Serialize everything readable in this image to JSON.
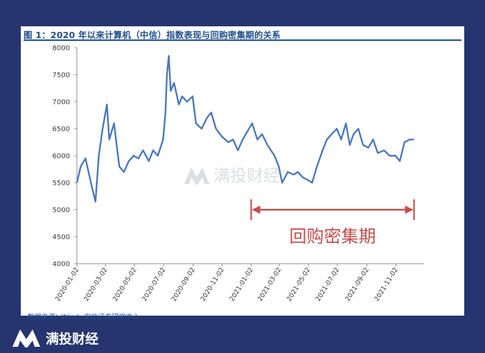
{
  "page": {
    "title": "图 1：2020 年以来计算机（中信）指数表现与回购密集期的关系",
    "source": "数据来源：Wind, 安信证券研究中心",
    "watermark": "满投财经",
    "brand": "满投财经"
  },
  "colors": {
    "background": "#26356f",
    "line": "#4a78b8",
    "annotation": "#c0504d",
    "title": "#1f4e8c"
  },
  "chart_data": {
    "type": "line",
    "title": "",
    "xlabel": "",
    "ylabel": "",
    "ylim": [
      4000,
      8000
    ],
    "yticks": [
      4000,
      4500,
      5000,
      5500,
      6000,
      6500,
      7000,
      7500,
      8000
    ],
    "xticks": [
      "2020-01-02",
      "2020-03-02",
      "2020-05-02",
      "2020-07-02",
      "2020-09-02",
      "2020-11-02",
      "2021-01-02",
      "2021-03-02",
      "2021-05-02",
      "2021-07-02",
      "2021-09-02",
      "2021-11-02"
    ],
    "grid": false,
    "series": [
      {
        "name": "",
        "points": [
          [
            "2020-01-02",
            5500
          ],
          [
            "2020-01-10",
            5800
          ],
          [
            "2020-01-20",
            5950
          ],
          [
            "2020-02-03",
            5400
          ],
          [
            "2020-02-10",
            5150
          ],
          [
            "2020-02-17",
            6000
          ],
          [
            "2020-02-25",
            6500
          ],
          [
            "2020-03-05",
            6950
          ],
          [
            "2020-03-10",
            6300
          ],
          [
            "2020-03-20",
            6600
          ],
          [
            "2020-03-31",
            5800
          ],
          [
            "2020-04-10",
            5700
          ],
          [
            "2020-04-20",
            5900
          ],
          [
            "2020-04-30",
            6000
          ],
          [
            "2020-05-10",
            5950
          ],
          [
            "2020-05-20",
            6100
          ],
          [
            "2020-06-01",
            5900
          ],
          [
            "2020-06-10",
            6100
          ],
          [
            "2020-06-20",
            6000
          ],
          [
            "2020-07-01",
            6300
          ],
          [
            "2020-07-06",
            6800
          ],
          [
            "2020-07-09",
            7500
          ],
          [
            "2020-07-13",
            7850
          ],
          [
            "2020-07-17",
            7200
          ],
          [
            "2020-07-24",
            7350
          ],
          [
            "2020-08-03",
            6950
          ],
          [
            "2020-08-10",
            7100
          ],
          [
            "2020-08-20",
            7000
          ],
          [
            "2020-09-01",
            7100
          ],
          [
            "2020-09-08",
            6600
          ],
          [
            "2020-09-20",
            6500
          ],
          [
            "2020-10-01",
            6700
          ],
          [
            "2020-10-10",
            6800
          ],
          [
            "2020-10-20",
            6500
          ],
          [
            "2020-11-02",
            6350
          ],
          [
            "2020-11-15",
            6250
          ],
          [
            "2020-11-25",
            6300
          ],
          [
            "2020-12-05",
            6100
          ],
          [
            "2020-12-15",
            6300
          ],
          [
            "2021-01-04",
            6600
          ],
          [
            "2021-01-15",
            6300
          ],
          [
            "2021-01-25",
            6400
          ],
          [
            "2021-02-05",
            6200
          ],
          [
            "2021-02-20",
            6000
          ],
          [
            "2021-03-01",
            5800
          ],
          [
            "2021-03-08",
            5500
          ],
          [
            "2021-03-20",
            5700
          ],
          [
            "2021-04-01",
            5650
          ],
          [
            "2021-04-10",
            5700
          ],
          [
            "2021-04-20",
            5600
          ],
          [
            "2021-05-01",
            5550
          ],
          [
            "2021-05-10",
            5500
          ],
          [
            "2021-05-20",
            5800
          ],
          [
            "2021-06-01",
            6100
          ],
          [
            "2021-06-10",
            6300
          ],
          [
            "2021-06-20",
            6400
          ],
          [
            "2021-07-01",
            6500
          ],
          [
            "2021-07-10",
            6300
          ],
          [
            "2021-07-20",
            6600
          ],
          [
            "2021-07-28",
            6200
          ],
          [
            "2021-08-05",
            6400
          ],
          [
            "2021-08-15",
            6500
          ],
          [
            "2021-08-25",
            6200
          ],
          [
            "2021-09-05",
            6150
          ],
          [
            "2021-09-15",
            6300
          ],
          [
            "2021-09-25",
            6050
          ],
          [
            "2021-10-08",
            6100
          ],
          [
            "2021-10-20",
            6000
          ],
          [
            "2021-11-01",
            6000
          ],
          [
            "2021-11-10",
            5900
          ],
          [
            "2021-11-20",
            6250
          ],
          [
            "2021-12-01",
            6300
          ],
          [
            "2021-12-10",
            6300
          ]
        ]
      }
    ],
    "annotation": {
      "label": "回购密集期",
      "x_start": "2021-01-02",
      "x_end": "2021-12-10",
      "y": 5000
    }
  }
}
